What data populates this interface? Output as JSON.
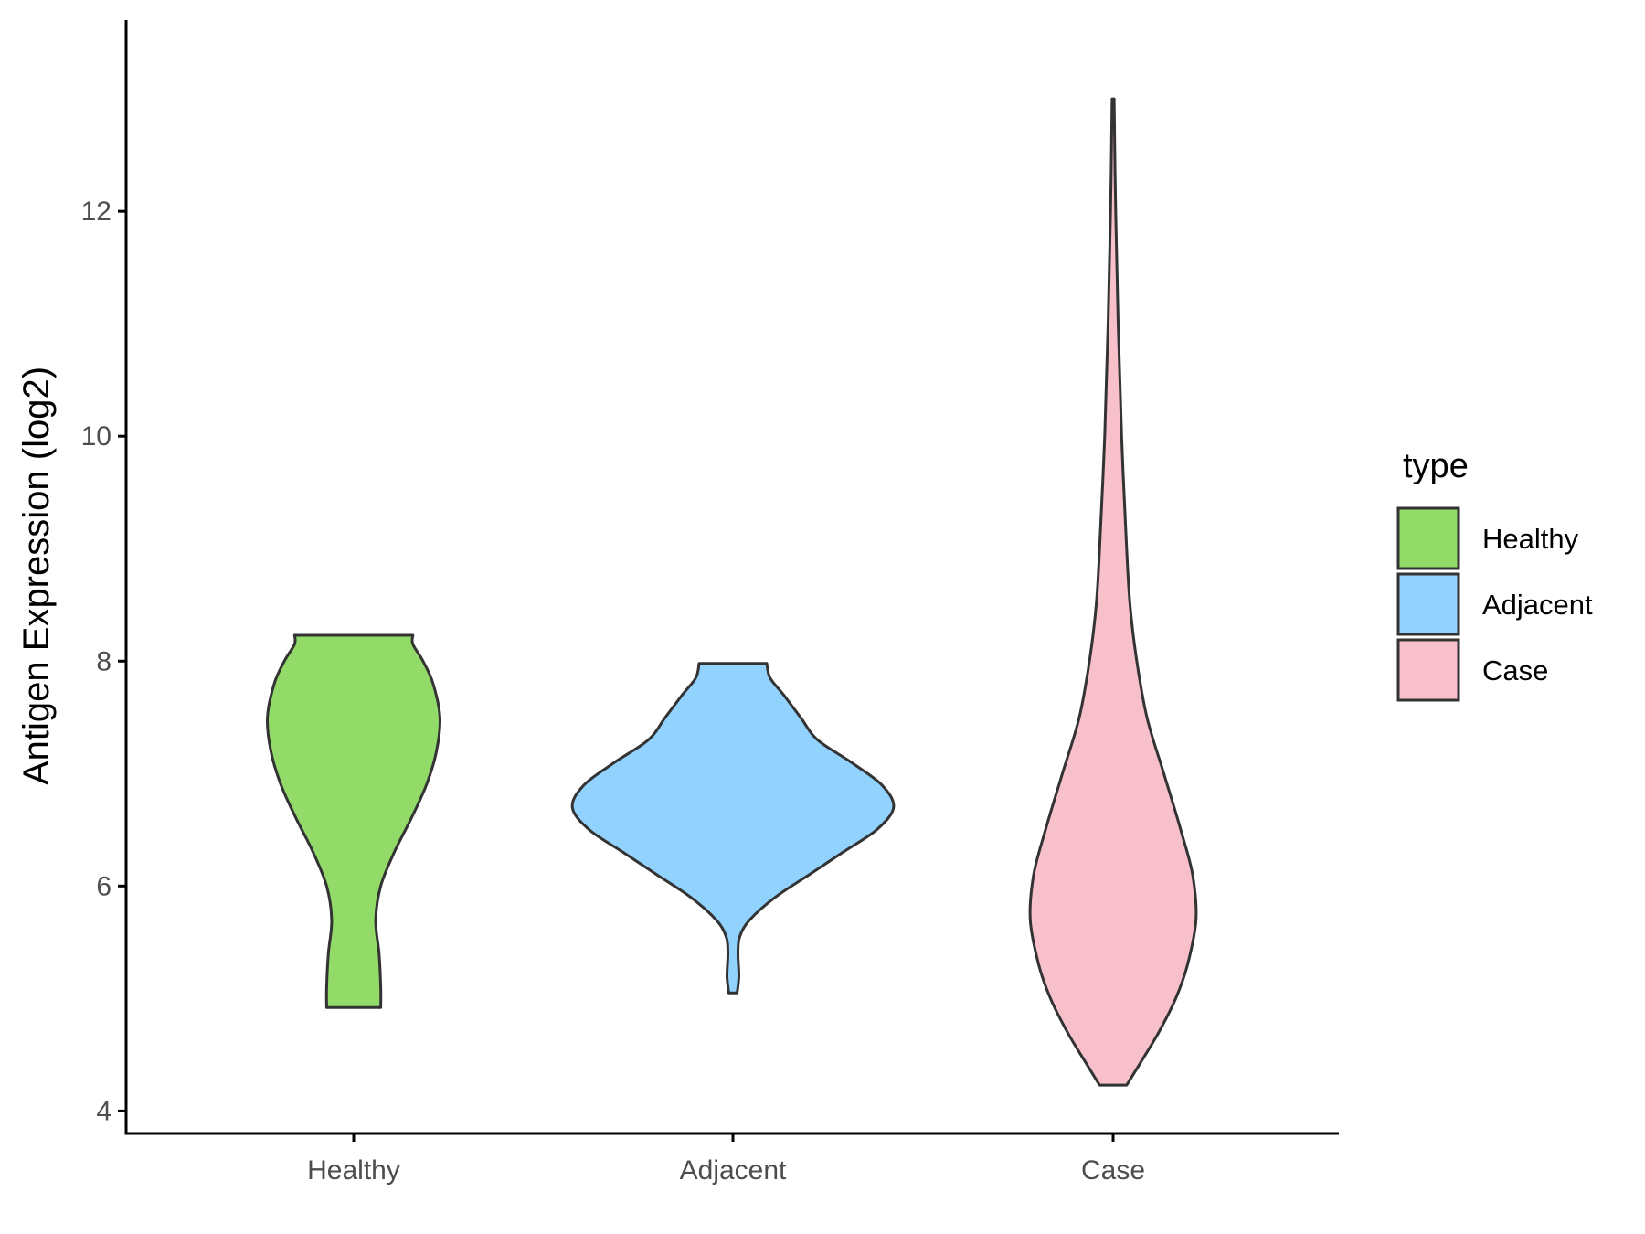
{
  "chart_data": {
    "type": "violin",
    "title": "",
    "xlabel": "",
    "ylabel": "Antigen Expression (log2)",
    "ylim": [
      3.8,
      13.7
    ],
    "yticks": [
      "4",
      "6",
      "8",
      "10",
      "12"
    ],
    "categories": [
      "Healthy",
      "Adjacent",
      "Case"
    ],
    "grid": false,
    "legend": {
      "title": "type",
      "placement": "right",
      "entries": [
        {
          "label": "Healthy",
          "color": "#93DB69"
        },
        {
          "label": "Adjacent",
          "color": "#92D2FF"
        },
        {
          "label": "Case",
          "color": "#F7C0CB"
        }
      ]
    },
    "series": [
      {
        "category": "Healthy",
        "color": "#93DB69",
        "ymin": 4.92,
        "ymax": 8.23,
        "density_profile": [
          [
            4.92,
            0.16
          ],
          [
            5.1,
            0.16
          ],
          [
            5.4,
            0.15
          ],
          [
            5.7,
            0.13
          ],
          [
            6.0,
            0.16
          ],
          [
            6.3,
            0.24
          ],
          [
            6.6,
            0.34
          ],
          [
            6.9,
            0.43
          ],
          [
            7.2,
            0.49
          ],
          [
            7.5,
            0.51
          ],
          [
            7.8,
            0.47
          ],
          [
            8.0,
            0.41
          ],
          [
            8.15,
            0.35
          ],
          [
            8.23,
            0.35
          ]
        ]
      },
      {
        "category": "Adjacent",
        "color": "#92D2FF",
        "ymin": 5.05,
        "ymax": 7.98,
        "density_profile": [
          [
            5.05,
            0.025
          ],
          [
            5.2,
            0.035
          ],
          [
            5.4,
            0.03
          ],
          [
            5.55,
            0.04
          ],
          [
            5.7,
            0.1
          ],
          [
            5.9,
            0.25
          ],
          [
            6.1,
            0.45
          ],
          [
            6.3,
            0.65
          ],
          [
            6.5,
            0.85
          ],
          [
            6.7,
            0.95
          ],
          [
            6.9,
            0.88
          ],
          [
            7.1,
            0.7
          ],
          [
            7.3,
            0.5
          ],
          [
            7.5,
            0.4
          ],
          [
            7.7,
            0.3
          ],
          [
            7.85,
            0.22
          ],
          [
            7.98,
            0.2
          ]
        ]
      },
      {
        "category": "Case",
        "color": "#F7C0CB",
        "ymin": 4.23,
        "ymax": 13.0,
        "density_profile": [
          [
            4.23,
            0.08
          ],
          [
            4.4,
            0.15
          ],
          [
            4.7,
            0.27
          ],
          [
            5.0,
            0.37
          ],
          [
            5.3,
            0.44
          ],
          [
            5.7,
            0.49
          ],
          [
            6.1,
            0.47
          ],
          [
            6.5,
            0.4
          ],
          [
            7.0,
            0.3
          ],
          [
            7.5,
            0.2
          ],
          [
            8.0,
            0.14
          ],
          [
            8.5,
            0.1
          ],
          [
            9.0,
            0.08
          ],
          [
            10.0,
            0.05
          ],
          [
            11.0,
            0.03
          ],
          [
            12.0,
            0.015
          ],
          [
            13.0,
            0.006
          ]
        ]
      }
    ]
  }
}
